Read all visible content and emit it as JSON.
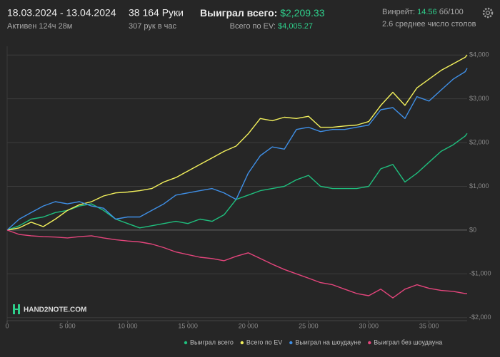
{
  "header": {
    "date_range": "18.03.2024 - 13.04.2024",
    "active": "Активен 124ч 28м",
    "hands": "38 164 Руки",
    "hands_per_hour": "307 рук в час",
    "won_label": "Выиграл всего:",
    "won_value": "$2,209.33",
    "ev_label": "Всего по EV:",
    "ev_value": "$4,005.27",
    "winrate_label": "Винрейт:",
    "winrate_value": "14.56",
    "winrate_unit": "бб/100",
    "tables": "2.6 среднее число столов"
  },
  "logo": "HAND2NOTE.COM",
  "chart_data": {
    "type": "line",
    "x": [
      0,
      1000,
      2000,
      3000,
      4000,
      5000,
      6000,
      7000,
      8000,
      9000,
      10000,
      11000,
      12000,
      13000,
      14000,
      15000,
      16000,
      17000,
      18000,
      19000,
      20000,
      21000,
      22000,
      23000,
      24000,
      25000,
      26000,
      27000,
      28000,
      29000,
      30000,
      31000,
      32000,
      33000,
      34000,
      35000,
      36000,
      37000,
      38000,
      38164
    ],
    "xlim": [
      0,
      38164
    ],
    "xticks": [
      0,
      {
        "value": 5000,
        "label": "5 000"
      },
      {
        "value": 10000,
        "label": "10 000"
      },
      {
        "value": 15000,
        "label": "15 000"
      },
      {
        "value": 20000,
        "label": "20 000"
      },
      {
        "value": 25000,
        "label": "25 000"
      },
      {
        "value": 30000,
        "label": "30 000"
      },
      {
        "value": 35000,
        "label": "35 000"
      }
    ],
    "ylim": [
      -2070,
      4200
    ],
    "yticks": [
      {
        "value": -2000,
        "label": "-$2,000"
      },
      {
        "value": -1000,
        "label": "-$1,000"
      },
      {
        "value": 0,
        "label": "$0"
      },
      {
        "value": 1000,
        "label": "$1,000"
      },
      {
        "value": 2000,
        "label": "$2,000"
      },
      {
        "value": 3000,
        "label": "$3,000"
      },
      {
        "value": 4000,
        "label": "$4,000"
      }
    ],
    "grid": true,
    "series": [
      {
        "name": "Выиграл всего",
        "color": "#1fbf7e",
        "values": [
          0,
          100,
          250,
          300,
          400,
          450,
          550,
          600,
          450,
          250,
          150,
          50,
          100,
          150,
          200,
          150,
          250,
          200,
          350,
          700,
          800,
          900,
          950,
          1000,
          1150,
          1250,
          1000,
          950,
          950,
          950,
          1000,
          1400,
          1500,
          1100,
          1300,
          1550,
          1800,
          1950,
          2150,
          2209.33
        ]
      },
      {
        "name": "Всего по EV",
        "color": "#f2f05c",
        "values": [
          0,
          50,
          180,
          80,
          250,
          450,
          580,
          650,
          780,
          850,
          870,
          900,
          950,
          1100,
          1200,
          1350,
          1500,
          1650,
          1800,
          1920,
          2200,
          2550,
          2500,
          2580,
          2550,
          2600,
          2350,
          2350,
          2380,
          2400,
          2480,
          2850,
          3150,
          2850,
          3250,
          3450,
          3650,
          3800,
          3950,
          4005.27
        ]
      },
      {
        "name": "Выиграл на шоудауне",
        "color": "#3f8fe6",
        "values": [
          0,
          250,
          400,
          550,
          650,
          600,
          650,
          550,
          500,
          250,
          300,
          300,
          450,
          600,
          800,
          850,
          900,
          950,
          850,
          700,
          1300,
          1700,
          1900,
          1850,
          2300,
          2350,
          2250,
          2300,
          2300,
          2350,
          2400,
          2750,
          2800,
          2550,
          3050,
          2950,
          3200,
          3450,
          3620,
          3700
        ]
      },
      {
        "name": "Выиграл без шоудауна",
        "color": "#e4457c",
        "values": [
          0,
          -100,
          -130,
          -150,
          -160,
          -180,
          -150,
          -130,
          -180,
          -220,
          -250,
          -270,
          -320,
          -400,
          -500,
          -560,
          -620,
          -650,
          -700,
          -600,
          -520,
          -650,
          -780,
          -900,
          -1000,
          -1100,
          -1200,
          -1250,
          -1350,
          -1450,
          -1500,
          -1350,
          -1550,
          -1350,
          -1250,
          -1330,
          -1380,
          -1400,
          -1450,
          -1450
        ]
      }
    ]
  }
}
